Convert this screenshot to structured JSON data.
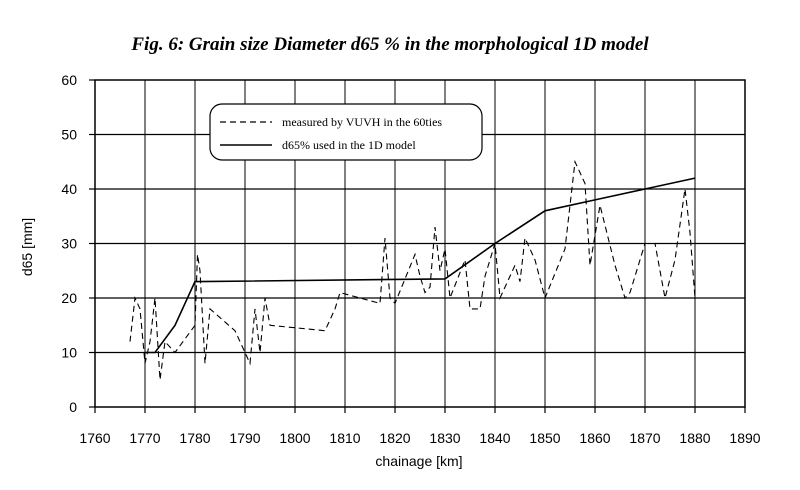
{
  "chart_data": {
    "type": "line",
    "title": "Fig. 6: Grain size Diameter d65 % in the morphological 1D model",
    "xlabel": "chainage [km]",
    "ylabel": "d65 [mm]",
    "xlim": [
      1760,
      1890
    ],
    "ylim": [
      0,
      60
    ],
    "xticks": [
      1760,
      1770,
      1780,
      1790,
      1800,
      1810,
      1820,
      1830,
      1840,
      1850,
      1860,
      1870,
      1880,
      1890
    ],
    "yticks": [
      0,
      10,
      20,
      30,
      40,
      50,
      60
    ],
    "grid": true,
    "legend_position": "top-left",
    "series": [
      {
        "name": "measured by VUVH in the 60ties",
        "style": "dashed",
        "x": [
          1767,
          1768,
          1769,
          1770,
          1771,
          1772,
          1773,
          1774,
          1776,
          1780,
          1780.5,
          1781,
          1782,
          1783,
          1788,
          1790,
          1791,
          1792,
          1793,
          1794,
          1795,
          1806,
          1808,
          1809,
          1817,
          1818,
          1819,
          1820,
          1824,
          1825,
          1826,
          1827,
          1828,
          1829,
          1830,
          1831,
          1834,
          1835,
          1837,
          1838,
          1840,
          1841,
          1844,
          1845,
          1846,
          1848,
          1850,
          1854,
          1856,
          1858,
          1859,
          1861,
          1864,
          1866,
          1867,
          1870,
          1872,
          1874,
          1876,
          1878,
          1879,
          1880
        ],
        "values": [
          12,
          20,
          18,
          8,
          12,
          20,
          5,
          12,
          10,
          15,
          28,
          25,
          8,
          18,
          14,
          10,
          8,
          18,
          10,
          20,
          15,
          14,
          18,
          21,
          19,
          31,
          20,
          19,
          28,
          24,
          21,
          22,
          33,
          25,
          29,
          20,
          27,
          18,
          18,
          24,
          30,
          20,
          26,
          23,
          31,
          27,
          20,
          29,
          45,
          41,
          26,
          37,
          26,
          20,
          21,
          30,
          30,
          20,
          27,
          40,
          32,
          20
        ]
      },
      {
        "name": "d65% used in the 1D model",
        "style": "solid",
        "x": [
          1770,
          1772,
          1776,
          1780,
          1781,
          1830,
          1840,
          1850,
          1860,
          1870,
          1880
        ],
        "values": [
          10,
          10,
          15,
          23,
          23,
          23.5,
          30,
          36,
          38,
          40,
          42
        ]
      }
    ]
  },
  "colors": {
    "line": "#000000",
    "grid": "#000000",
    "background": "#ffffff"
  }
}
